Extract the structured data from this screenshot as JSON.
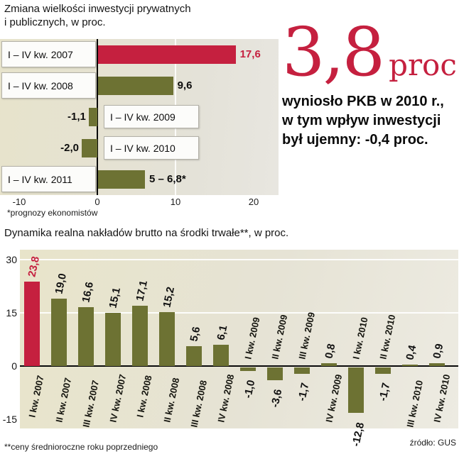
{
  "colors": {
    "accent_red": "#c5203f",
    "olive": "#6d7233"
  },
  "titles": {
    "top_line1": "Zmiana wielkości inwestycji prywatnych",
    "top_line2": "i publicznych, w proc."
  },
  "callout": {
    "big_number": "3,8",
    "unit": "proc.",
    "lines": [
      "wyniosło PKB w 2010 r.,",
      "w tym wpływ inwestycji",
      "był ujemny: -0,4 proc."
    ]
  },
  "chart_data": [
    {
      "type": "bar",
      "orientation": "horizontal",
      "title": "Zmiana wielkości inwestycji prywatnych i publicznych, w proc.",
      "categories": [
        "I – IV kw. 2007",
        "I – IV kw. 2008",
        "I – IV kw. 2009",
        "I – IV kw. 2010",
        "I – IV kw. 2011"
      ],
      "values": [
        17.6,
        9.6,
        -1.1,
        -2.0,
        6.0
      ],
      "value_labels": [
        "17,6",
        "9,6",
        "-1,1",
        "-2,0",
        "5 – 6,8*"
      ],
      "bar_2011_forecast_range": [
        5,
        6.8
      ],
      "bar_colors": [
        "#c5203f",
        "#6d7233",
        "#6d7233",
        "#6d7233",
        "#6d7233"
      ],
      "xlim": [
        -10,
        20
      ],
      "x_ticks": [
        -10,
        0,
        10,
        20
      ],
      "grid": "vertical line at 10",
      "footnote": "*prognozy ekonomistów"
    },
    {
      "type": "bar",
      "orientation": "vertical",
      "title": "Dynamika realna nakładów brutto na środki trwałe**, w proc.",
      "categories": [
        "I kw. 2007",
        "II kw. 2007",
        "III kw. 2007",
        "IV kw. 2007",
        "I kw. 2008",
        "II kw. 2008",
        "III kw. 2008",
        "IV kw. 2008",
        "I kw. 2009",
        "II kw. 2009",
        "III kw. 2009",
        "IV kw. 2009",
        "I kw. 2010",
        "II kw. 2010",
        "III kw. 2010",
        "IV kw. 2010"
      ],
      "values": [
        23.8,
        19.0,
        16.6,
        15.1,
        17.1,
        15.2,
        5.6,
        6.1,
        -1.0,
        -3.6,
        -1.7,
        0.8,
        -12.8,
        -1.7,
        0.4,
        0.9
      ],
      "value_labels": [
        "23,8",
        "19,0",
        "16,6",
        "15,1",
        "17,1",
        "15,2",
        "5,6",
        "6,1",
        "-1,0",
        "-3,6",
        "-1,7",
        "0,8",
        "-12,8",
        "-1,7",
        "0,4",
        "0,9"
      ],
      "highlight_index": 0,
      "ylim": [
        -15,
        30
      ],
      "y_ticks": [
        30,
        15,
        0,
        -15
      ],
      "grid": "horizontal white lines at 15 and 30, black zero line",
      "footnote": "**ceny średnioroczne roku poprzedniego",
      "source": "źródło: GUS"
    }
  ]
}
